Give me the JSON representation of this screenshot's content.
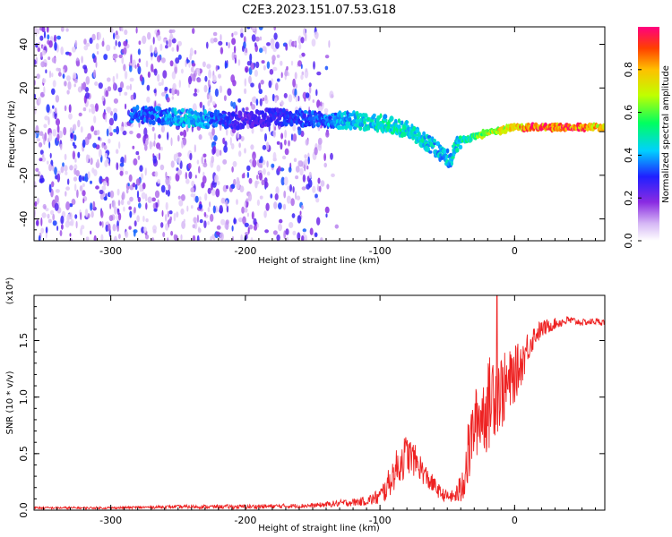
{
  "title": "C2E3.2023.151.07.53.G18",
  "colors": {
    "snr_line": "#ee2222",
    "spectrogram_dots": "#8a2be2",
    "background": "#ffffff"
  },
  "chart_data": [
    {
      "type": "heatmap",
      "name": "spectrogram",
      "xlabel": "Height of straight line (km)",
      "ylabel": "Frequency (Hz)",
      "xlim": [
        -357,
        67
      ],
      "ylim": [
        -50,
        48
      ],
      "xticks": [
        -300,
        -200,
        -100,
        0
      ],
      "xtick_labels": [
        "-300",
        "-200",
        "-100",
        "0"
      ],
      "yticks": [
        -40,
        -20,
        0,
        20,
        40
      ],
      "ytick_labels": [
        "-40",
        "-20",
        "0",
        "20",
        "40"
      ],
      "colormap": "rainbow (purple to red)",
      "colorbar": {
        "label": "Normalized spectral amplitude",
        "range": [
          0,
          1
        ],
        "ticks": [
          0.0,
          0.2,
          0.4,
          0.6,
          0.8
        ],
        "tick_labels": [
          "0.0",
          "0.2",
          "0.4",
          "0.6",
          "0.8"
        ]
      },
      "main_trace": {
        "x": [
          -280,
          -240,
          -200,
          -180,
          -150,
          -120,
          -100,
          -80,
          -60,
          -48,
          -42,
          -30,
          -15,
          0,
          20,
          40,
          67
        ],
        "y": [
          8,
          6,
          5,
          7,
          6,
          5,
          4,
          1,
          -7,
          -13,
          -5,
          -2,
          0,
          2,
          2,
          2,
          2
        ],
        "amplitude": [
          0.35,
          0.45,
          0.25,
          0.3,
          0.35,
          0.45,
          0.5,
          0.5,
          0.45,
          0.45,
          0.5,
          0.6,
          0.75,
          0.85,
          0.95,
          0.95,
          0.8
        ]
      },
      "noise_region": {
        "x_range": [
          -357,
          -130
        ],
        "y_range": [
          -50,
          48
        ],
        "amplitude": [
          0.05,
          0.35
        ]
      }
    },
    {
      "type": "line",
      "name": "snr",
      "xlabel": "Height of straight line (km)",
      "ylabel": "SNR (10 * v/v)",
      "y_multiplier": "(x10⁴)",
      "xlim": [
        -357,
        67
      ],
      "ylim": [
        0,
        1.9
      ],
      "xticks": [
        -300,
        -200,
        -100,
        0
      ],
      "xtick_labels": [
        "-300",
        "-200",
        "-100",
        "0"
      ],
      "yticks": [
        0.0,
        0.5,
        1.0,
        1.5
      ],
      "ytick_labels": [
        "0.0",
        "0.5",
        "1.0",
        "1.5"
      ],
      "series": [
        {
          "x": [
            -357,
            -300,
            -250,
            -200,
            -150,
            -130,
            -110,
            -100,
            -95,
            -90,
            -85,
            -80,
            -75,
            -70,
            -65,
            -60,
            -55,
            -50,
            -45,
            -40,
            -35,
            -30,
            -25,
            -20,
            -15,
            -10,
            -5,
            0,
            5,
            10,
            15,
            20,
            30,
            40,
            50,
            60,
            67
          ],
          "y": [
            0.02,
            0.02,
            0.03,
            0.03,
            0.04,
            0.06,
            0.08,
            0.12,
            0.2,
            0.32,
            0.42,
            0.5,
            0.45,
            0.38,
            0.28,
            0.22,
            0.15,
            0.12,
            0.12,
            0.18,
            0.45,
            0.75,
            0.85,
            0.9,
            1.1,
            1.05,
            1.1,
            1.2,
            1.3,
            1.45,
            1.55,
            1.6,
            1.65,
            1.68,
            1.66,
            1.67,
            1.66
          ],
          "jitter": [
            0.01,
            0.01,
            0.015,
            0.02,
            0.02,
            0.03,
            0.04,
            0.08,
            0.12,
            0.15,
            0.2,
            0.18,
            0.15,
            0.12,
            0.1,
            0.08,
            0.06,
            0.05,
            0.06,
            0.15,
            0.3,
            0.3,
            0.35,
            0.4,
            0.45,
            0.35,
            0.3,
            0.25,
            0.2,
            0.15,
            0.1,
            0.08,
            0.05,
            0.04,
            0.03,
            0.03,
            0.03
          ],
          "spike": {
            "x": -13,
            "y": 1.9
          }
        }
      ]
    }
  ]
}
